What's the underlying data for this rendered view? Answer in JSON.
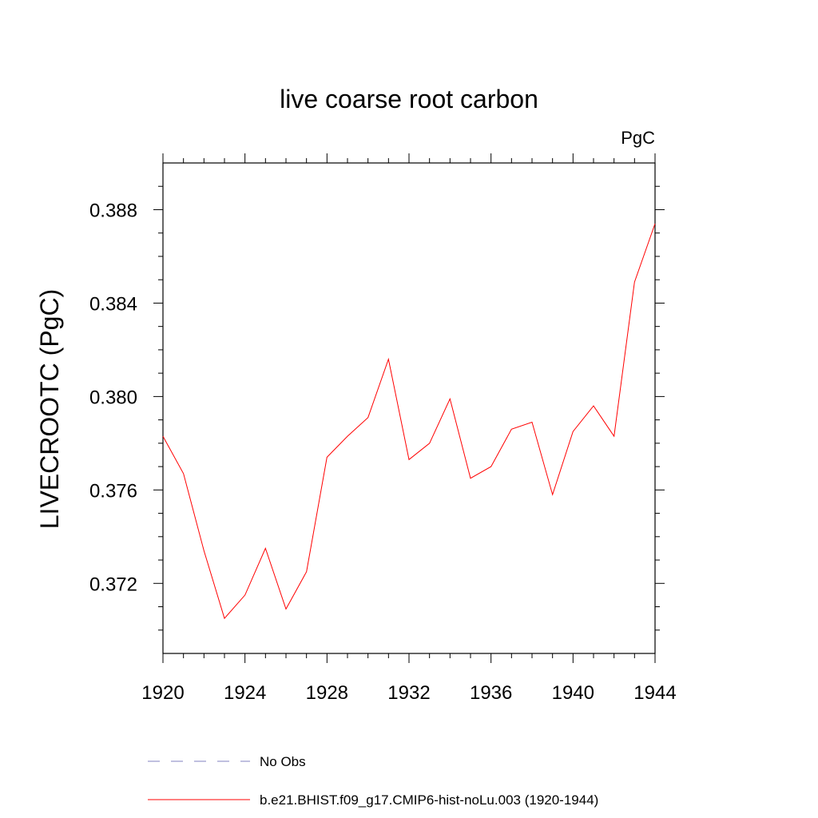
{
  "chart_data": {
    "type": "line",
    "title": "live coarse root carbon",
    "units_label": "PgC",
    "ylabel": "LIVECROOTC  (PgC)",
    "xlim": [
      1920,
      1944
    ],
    "ylim": [
      0.369,
      0.39
    ],
    "x_ticks": [
      "1920",
      "1924",
      "1928",
      "1932",
      "1936",
      "1940",
      "1944"
    ],
    "y_ticks": [
      "0.372",
      "0.376",
      "0.380",
      "0.384",
      "0.388"
    ],
    "grid": false,
    "x": [
      1920,
      1921,
      1922,
      1923,
      1924,
      1925,
      1926,
      1927,
      1928,
      1929,
      1930,
      1931,
      1932,
      1933,
      1934,
      1935,
      1936,
      1937,
      1938,
      1939,
      1940,
      1941,
      1942,
      1943,
      1944
    ],
    "series": [
      {
        "name": "b.e21.BHIST.f09_g17.CMIP6-hist-noLu.003 (1920-1944)",
        "color": "#ff0000",
        "values": [
          0.3783,
          0.3767,
          0.3734,
          0.3705,
          0.3715,
          0.3735,
          0.3709,
          0.3725,
          0.3774,
          0.3783,
          0.3791,
          0.3816,
          0.3773,
          0.378,
          0.3799,
          0.3765,
          0.377,
          0.3786,
          0.3789,
          0.3758,
          0.3785,
          0.3796,
          0.3783,
          0.3849,
          0.3874
        ]
      }
    ],
    "legend": [
      {
        "label": "No Obs",
        "style": "dashed",
        "color": "#8080c0"
      },
      {
        "label": "b.e21.BHIST.f09_g17.CMIP6-hist-noLu.003 (1920-1944)",
        "style": "solid",
        "color": "#ff0000"
      }
    ],
    "legend_position": "bottom"
  }
}
